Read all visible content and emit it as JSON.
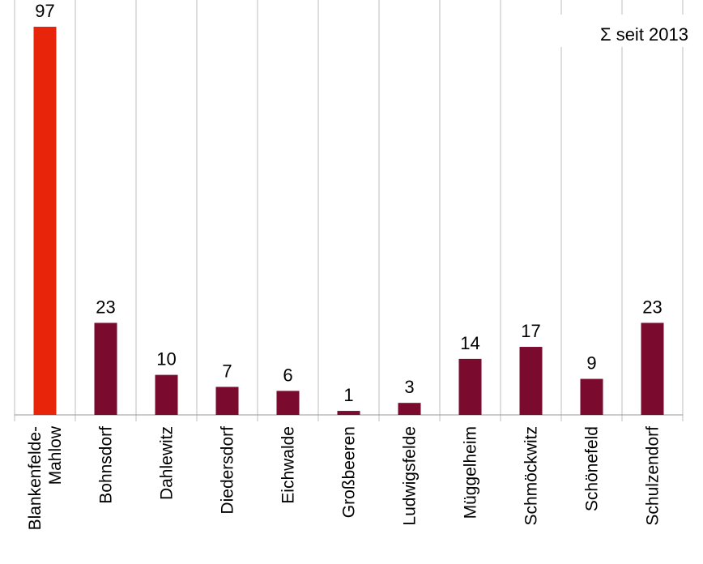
{
  "chart_data": {
    "type": "bar",
    "title": "",
    "annotation": "Σ seit 2013",
    "categories": [
      "Blankenfelde-\nMahlow",
      "Bohnsdorf",
      "Dahlewitz",
      "Diedersdorf",
      "Eichwalde",
      "Großbeeren",
      "Ludwigsfelde",
      "Müggelheim",
      "Schmöckwitz",
      "Schönefeld",
      "Schulzendorf"
    ],
    "values": [
      97,
      23,
      10,
      7,
      6,
      1,
      3,
      14,
      17,
      9,
      23
    ],
    "ylim": [
      0,
      97
    ],
    "xlabel": "",
    "ylabel": "",
    "grid": "vertical",
    "highlight_index": 0,
    "colors": {
      "highlight": "#e8240a",
      "bar": "#7a0a2e",
      "grid": "#bdbdbd",
      "axis": "#9a9a9a"
    }
  }
}
